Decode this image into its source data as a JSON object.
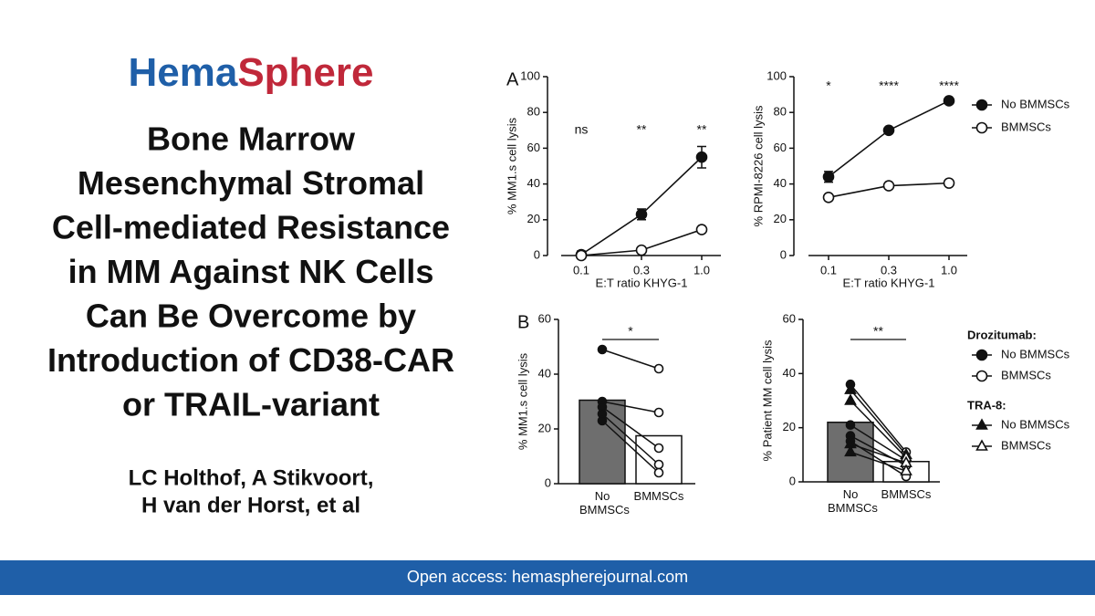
{
  "header": {
    "brand": [
      "Hema",
      "Sphere"
    ],
    "title": [
      "Bone Marrow",
      "Mesenchymal Stromal",
      "Cell-mediated Resistance",
      "in MM Against NK Cells",
      "Can Be Overcome by",
      "Introduction of CD38-CAR",
      "or TRAIL-variant"
    ],
    "authors": [
      "LC Holthof, A Stikvoort,",
      "H van der Horst, et al"
    ]
  },
  "footer": "Open access:  hemaspherejournal.com",
  "chart_data": [
    {
      "type": "line",
      "panel": "A",
      "categories": [
        "0.1",
        "0.3",
        "1.0"
      ],
      "xlabel": "E:T ratio KHYG-1",
      "ylabel": "% MM1.s cell lysis",
      "ylim": [
        0,
        100
      ],
      "yticks": [
        0,
        20,
        40,
        60,
        80,
        100
      ],
      "annotations": [
        "ns",
        "**",
        "**"
      ],
      "series": [
        {
          "marker": "filled",
          "values": [
            0.5,
            23,
            55
          ],
          "errors": [
            2,
            3,
            6
          ]
        },
        {
          "marker": "open",
          "values": [
            0,
            3,
            14.5
          ]
        }
      ]
    },
    {
      "type": "line",
      "categories": [
        "0.1",
        "0.3",
        "1.0"
      ],
      "xlabel": "E:T ratio KHYG-1",
      "ylabel": "% RPMI-8226 cell lysis",
      "ylim": [
        0,
        100
      ],
      "yticks": [
        0,
        20,
        40,
        60,
        80,
        100
      ],
      "annotations": [
        "*",
        "****",
        "****"
      ],
      "legend": true,
      "series": [
        {
          "name": "No BMMSCs",
          "marker": "filled",
          "values": [
            44,
            70,
            86.5
          ],
          "errors": [
            3,
            1,
            1
          ]
        },
        {
          "name": "BMMSCs",
          "marker": "open",
          "values": [
            32.5,
            39,
            40.5
          ]
        }
      ]
    },
    {
      "type": "paired_bar",
      "panel": "B",
      "categories": [
        "No BMMSCs",
        "BMMSCs"
      ],
      "values": [
        30.5,
        17.5
      ],
      "ylabel": "% MM1.s cell lysis",
      "ylim": [
        0,
        60
      ],
      "yticks": [
        0,
        20,
        40,
        60
      ],
      "significance": "*",
      "pairs": [
        {
          "marker": "circle",
          "values": [
            49,
            42
          ]
        },
        {
          "marker": "circle",
          "values": [
            30,
            26
          ]
        },
        {
          "marker": "circle",
          "values": [
            28,
            13
          ]
        },
        {
          "marker": "circle",
          "values": [
            25.5,
            7
          ]
        },
        {
          "marker": "circle",
          "values": [
            23,
            4
          ]
        }
      ]
    },
    {
      "type": "paired_bar",
      "categories": [
        "No BMMSCs",
        "BMMSCs"
      ],
      "values": [
        22,
        7.5
      ],
      "ylabel": "% Patient MM cell lysis",
      "ylim": [
        0,
        60
      ],
      "yticks": [
        0,
        20,
        40,
        60
      ],
      "significance": "**",
      "legend": [
        {
          "title": "Drozitumab:",
          "marker": "circle",
          "entries": [
            "No BMMSCs",
            "BMMSCs"
          ]
        },
        {
          "title": "TRA-8:",
          "marker": "triangle",
          "entries": [
            "No BMMSCs",
            "BMMSCs"
          ]
        }
      ],
      "pairs": [
        {
          "marker": "circle",
          "values": [
            36,
            11
          ]
        },
        {
          "marker": "circle",
          "values": [
            21,
            8
          ]
        },
        {
          "marker": "circle",
          "values": [
            17,
            6
          ]
        },
        {
          "marker": "circle",
          "values": [
            15,
            2
          ]
        },
        {
          "marker": "triangle",
          "values": [
            34,
            10
          ]
        },
        {
          "marker": "triangle",
          "values": [
            30,
            9
          ]
        },
        {
          "marker": "triangle",
          "values": [
            14,
            7
          ]
        },
        {
          "marker": "triangle",
          "values": [
            11,
            4
          ]
        }
      ]
    }
  ]
}
